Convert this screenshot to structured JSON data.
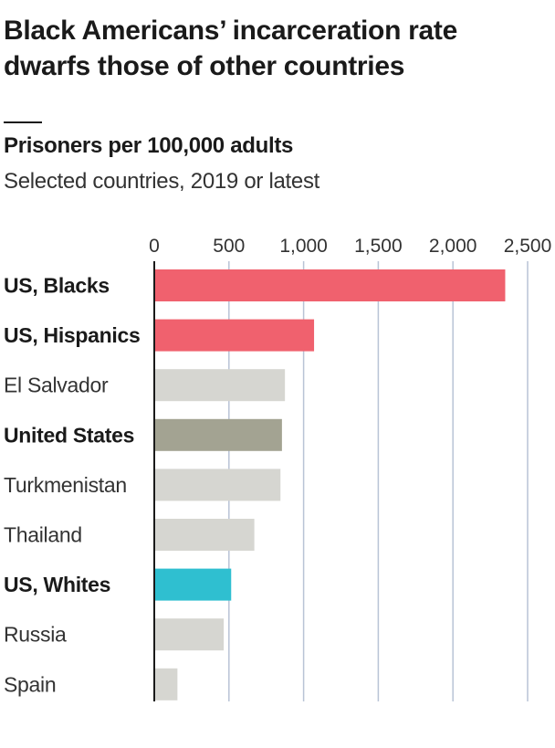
{
  "header": {
    "title": "Black Americans’ incarceration rate dwarfs those of other countries",
    "subtitle": "Prisoners per 100,000 adults",
    "note": "Selected countries, 2019 or latest"
  },
  "chart_data": {
    "type": "bar",
    "orientation": "horizontal",
    "title": "Prisoners per 100,000 adults",
    "subtitle": "Selected countries, 2019 or latest",
    "xlabel": "",
    "ylabel": "",
    "xlim": [
      0,
      2500
    ],
    "xticks": [
      0,
      500,
      1000,
      1500,
      2000,
      2500
    ],
    "xtick_labels": [
      "0",
      "500",
      "1,000",
      "1,500",
      "2,000",
      "2,500"
    ],
    "grid": true,
    "categories": [
      "US, Blacks",
      "US, Hispanics",
      "El Salvador",
      "United States",
      "Turkmenistan",
      "Thailand",
      "US, Whites",
      "Russia",
      "Spain"
    ],
    "values": [
      2350,
      1070,
      875,
      855,
      845,
      670,
      515,
      465,
      155
    ],
    "label_emphasis": [
      true,
      true,
      false,
      true,
      false,
      false,
      true,
      false,
      false
    ],
    "bar_colors": [
      "#f0616e",
      "#f0616e",
      "#d6d6d1",
      "#a3a392",
      "#d6d6d1",
      "#d6d6d1",
      "#2fbfd0",
      "#d6d6d1",
      "#d6d6d1"
    ]
  }
}
